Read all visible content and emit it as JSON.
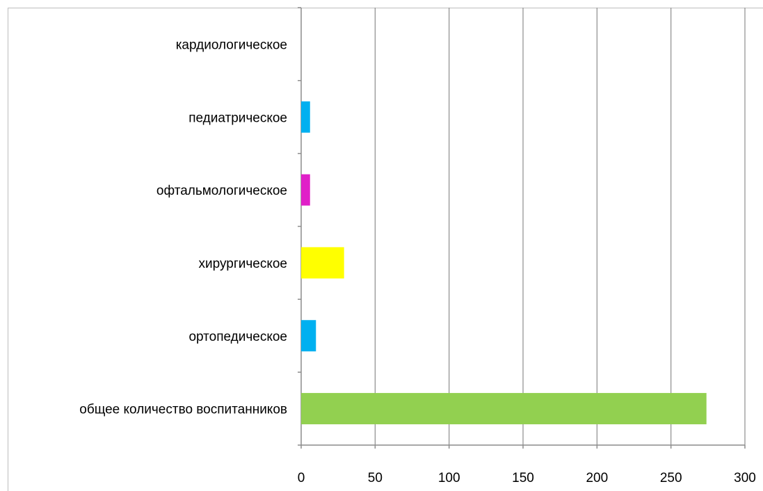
{
  "chart_data": {
    "type": "bar",
    "orientation": "horizontal",
    "categories": [
      "общее количество воспитанников",
      "ортопедическое",
      "хирургическое",
      "офтальмологическое",
      "педиатрическое",
      "кардиологическое"
    ],
    "values": [
      274,
      10,
      29,
      6,
      6,
      0
    ],
    "colors": [
      "#92d050",
      "#00b0f0",
      "#ffff00",
      "#e020c8",
      "#00b0f0",
      "#00b0f0"
    ],
    "xlim": [
      0,
      300
    ],
    "xticks": [
      0,
      50,
      100,
      150,
      200,
      250,
      300
    ],
    "tick_labels": [
      "0",
      "50",
      "100",
      "150",
      "200",
      "250",
      "300"
    ],
    "grid": "vertical",
    "title": "",
    "xlabel": "",
    "ylabel": "",
    "legend": "none"
  }
}
